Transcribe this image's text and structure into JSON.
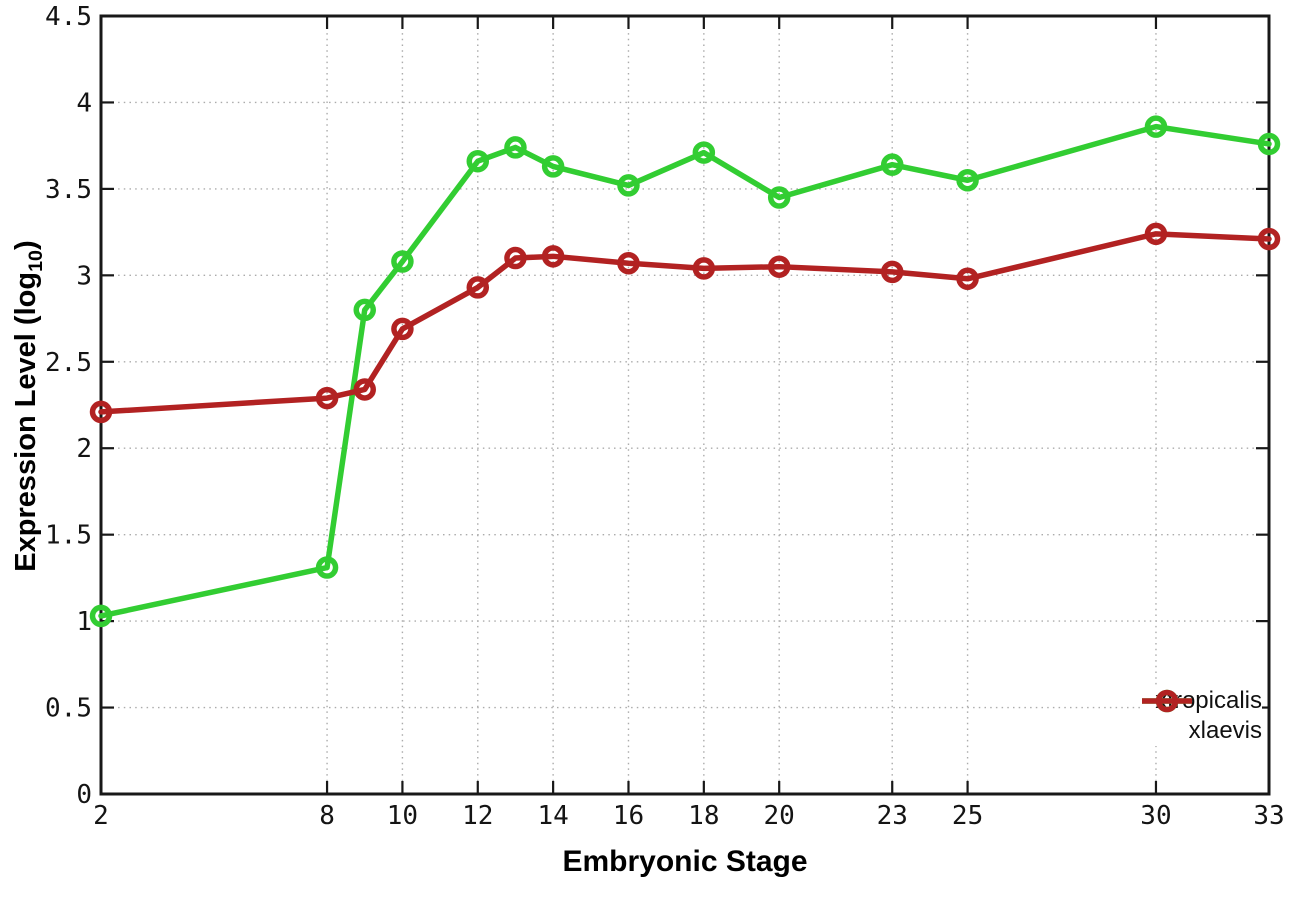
{
  "figure": {
    "background": "#ffffff",
    "border_color": "#181818",
    "grid_color": "#ababab",
    "tick_label_color": "#141414"
  },
  "chart_data": {
    "type": "line",
    "title": "",
    "xlabel": "Embryonic Stage",
    "ylabel": "Expression Level (log10)",
    "ylabel_parts": {
      "main": "Expression Level (log",
      "sub": "10",
      "end": ")"
    },
    "x": [
      2,
      8,
      9,
      10,
      12,
      13,
      14,
      16,
      18,
      20,
      23,
      25,
      30,
      33
    ],
    "x_ticks": [
      2,
      8,
      10,
      12,
      14,
      16,
      18,
      20,
      23,
      25,
      30,
      33
    ],
    "xlim": [
      2,
      33
    ],
    "y_ticks": [
      0,
      0.5,
      1,
      1.5,
      2,
      2.5,
      3,
      3.5,
      4,
      4.5
    ],
    "ylim": [
      0,
      4.5
    ],
    "grid": true,
    "grid_style": "dotted",
    "legend_position": "inside-bottom-right",
    "marker": "open-circle",
    "line_width": 5.5,
    "marker_radius": 8.5,
    "series": [
      {
        "name": "xtropicalis",
        "color": "#32cd32",
        "values": [
          1.03,
          1.31,
          2.8,
          3.08,
          3.66,
          3.74,
          3.63,
          3.52,
          3.71,
          3.45,
          3.64,
          3.55,
          3.86,
          3.76
        ]
      },
      {
        "name": "xlaevis",
        "color": "#b22222",
        "values": [
          2.21,
          2.29,
          2.34,
          2.69,
          2.93,
          3.1,
          3.11,
          3.07,
          3.04,
          3.05,
          3.02,
          2.98,
          3.24,
          3.21
        ]
      }
    ]
  }
}
